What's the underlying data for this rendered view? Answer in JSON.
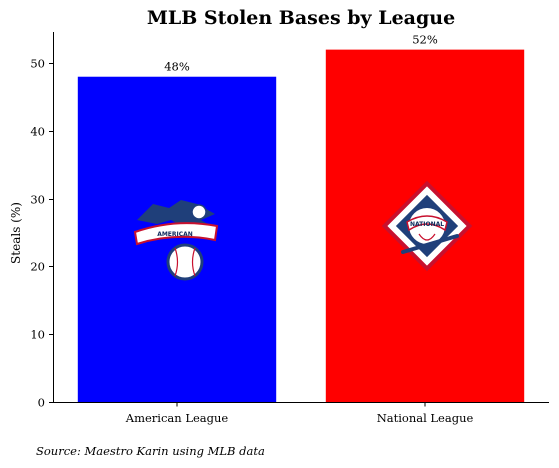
{
  "chart_data": {
    "type": "bar",
    "title": "MLB Stolen Bases by League",
    "ylabel": "Steals (%)",
    "xlabel": "",
    "categories": [
      "American League",
      "National League"
    ],
    "values": [
      48,
      52
    ],
    "data_labels": [
      "48%",
      "52%"
    ],
    "colors": [
      "#0000ff",
      "#ff0000"
    ],
    "ylim": [
      0,
      54.6
    ],
    "yticks": [
      0,
      10,
      20,
      30,
      40,
      50
    ],
    "grid": false,
    "legend": "none"
  },
  "source": "Source: Maestro Karin using MLB data",
  "logos": {
    "american": {
      "icon": "american-league-logo",
      "text": "AMERICAN"
    },
    "national": {
      "icon": "national-league-logo",
      "text": "NATIONAL"
    }
  }
}
